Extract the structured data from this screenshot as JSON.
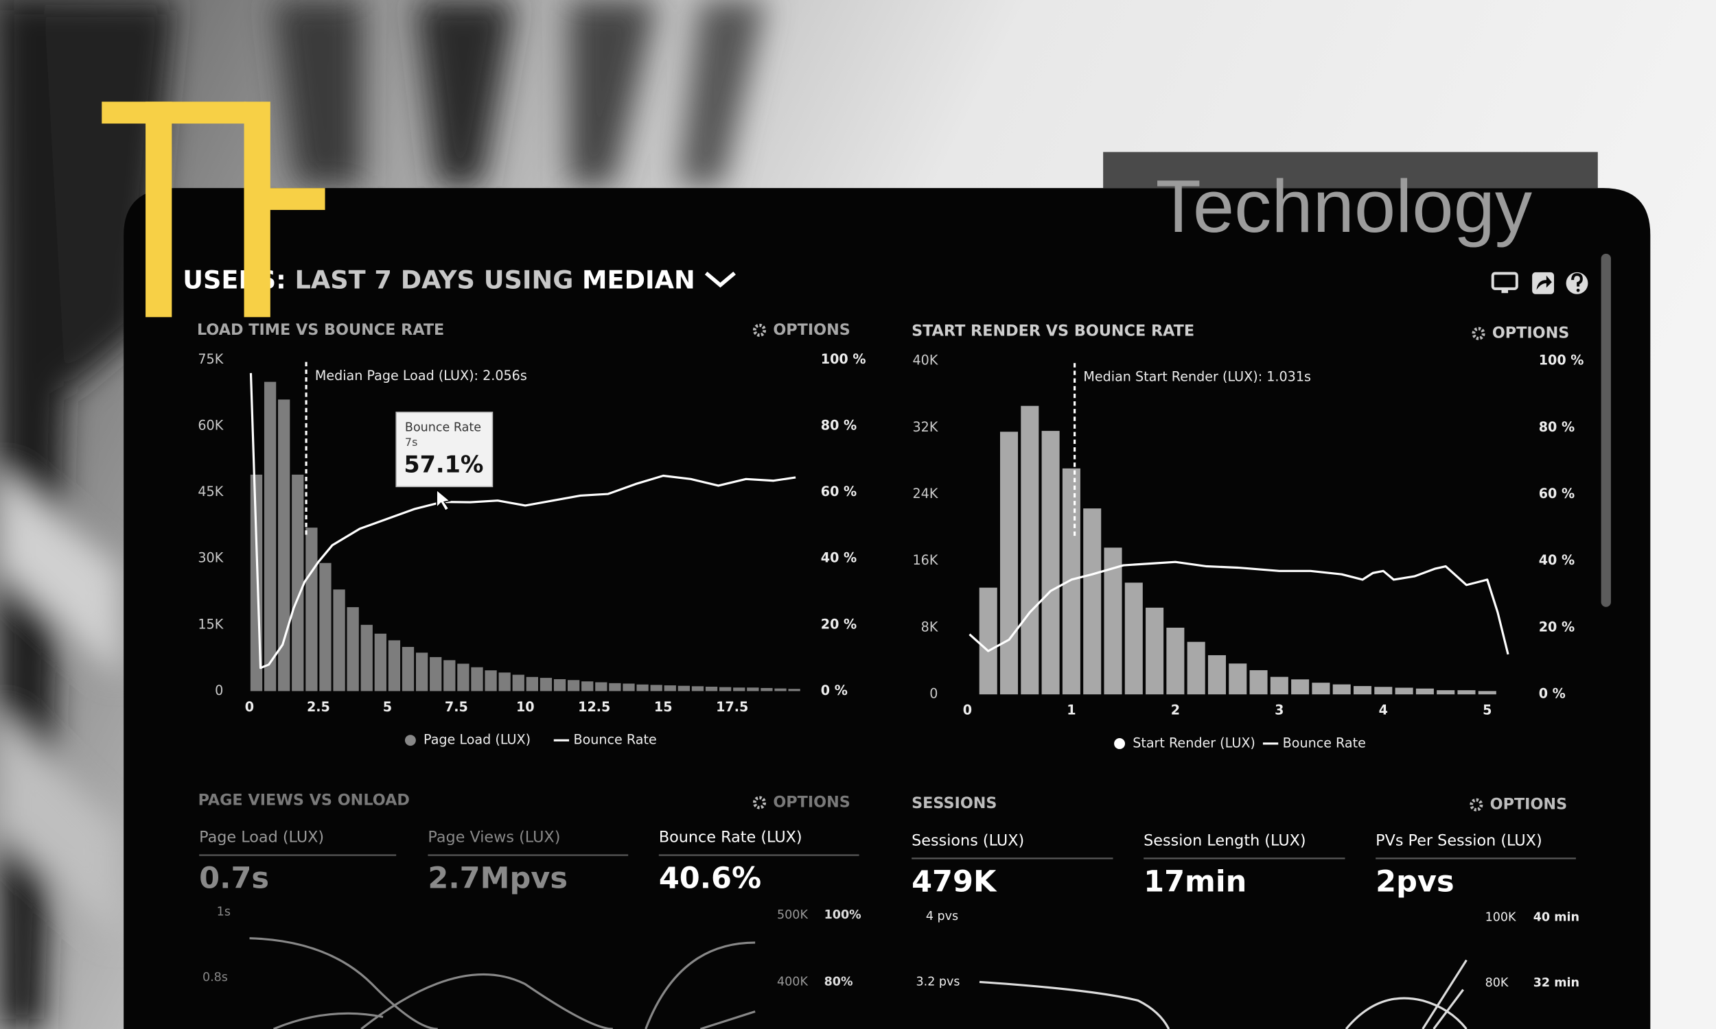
{
  "badge": "Technology",
  "header": {
    "parts": [
      "USERS:",
      "LAST 7 DAYS",
      "USING",
      "MEDIAN"
    ]
  },
  "chart_data": [
    {
      "type": "histogram",
      "title": "LOAD TIME VS BOUNCE RATE",
      "options": "OPTIONS",
      "bins": [
        0,
        0.5,
        1,
        1.5,
        2,
        2.5,
        3,
        3.5,
        4,
        4.5,
        5,
        5.5,
        6,
        6.5,
        7,
        7.5,
        8,
        8.5,
        9,
        9.5,
        10,
        10.5,
        11,
        11.5,
        12,
        12.5,
        13,
        13.5,
        14,
        14.5,
        15,
        15.5,
        16,
        16.5,
        17,
        17.5,
        18,
        18.5,
        19,
        19.5,
        20
      ],
      "xlim": [
        -0.3,
        20.3
      ],
      "xticks": [
        0,
        2.5,
        5,
        7.5,
        10,
        12.5,
        15,
        17.5
      ],
      "ylim": [
        0,
        75000
      ],
      "yticks": [
        0,
        {
          "value": 15000,
          "label": "15K"
        },
        {
          "value": 30000,
          "label": "30K"
        },
        {
          "value": 45000,
          "label": "45K"
        },
        {
          "value": 60000,
          "label": "60K"
        },
        {
          "value": 75000,
          "label": "75K"
        }
      ],
      "y2lim": [
        0,
        100
      ],
      "y2ticks": [
        {
          "value": 0,
          "label": "0 %"
        },
        {
          "value": 20,
          "label": "20 %"
        },
        {
          "value": 40,
          "label": "40 %"
        },
        {
          "value": 60,
          "label": "60 %"
        },
        {
          "value": 80,
          "label": "80 %"
        },
        {
          "value": 100,
          "label": "100 %"
        }
      ],
      "series": [
        {
          "name": "Page Load (LUX)",
          "color": "#7d7d7d",
          "values": [
            49000,
            70000,
            66000,
            49000,
            37000,
            29000,
            23000,
            19000,
            15000,
            13000,
            11500,
            10000,
            8700,
            7700,
            7000,
            6200,
            5400,
            4700,
            4200,
            3700,
            3200,
            3000,
            2700,
            2500,
            2200,
            2000,
            1800,
            1700,
            1500,
            1400,
            1300,
            1200,
            1100,
            1000,
            900,
            800,
            800,
            700,
            600,
            500
          ]
        },
        {
          "name": "Bounce Rate",
          "color": "#ffffff",
          "axis": "y2",
          "x": [
            0.05,
            0.4,
            0.7,
            1.2,
            1.6,
            2,
            2.5,
            3,
            4,
            5,
            6,
            7,
            8,
            9,
            10,
            11,
            12,
            13,
            14,
            15,
            16,
            17,
            18,
            19,
            19.8
          ],
          "values": [
            96,
            7,
            8,
            14,
            25,
            33,
            39,
            44,
            49,
            52,
            55,
            57.1,
            57,
            57.5,
            56,
            57.5,
            59,
            59.5,
            62.5,
            65,
            64,
            62,
            64,
            63.5,
            64.5
          ]
        }
      ],
      "median": {
        "value": 2.056,
        "label": "Median Page Load (LUX): 2.056s"
      },
      "tooltip": {
        "title": "Bounce Rate",
        "x_label": "7s",
        "value_label": "57.1%"
      }
    },
    {
      "type": "histogram",
      "title": "START RENDER VS BOUNCE RATE",
      "options": "OPTIONS",
      "bins": [
        0.1,
        0.3,
        0.5,
        0.7,
        0.9,
        1.1,
        1.3,
        1.5,
        1.7,
        1.9,
        2.1,
        2.3,
        2.5,
        2.7,
        2.9,
        3.1,
        3.3,
        3.5,
        3.7,
        3.9,
        4.1,
        4.3,
        4.5,
        4.7,
        4.9,
        5.1
      ],
      "xlim": [
        0,
        5.3
      ],
      "xticks": [
        0,
        1,
        2,
        3,
        4,
        5
      ],
      "ylim": [
        0,
        40000
      ],
      "yticks": [
        0,
        {
          "value": 8000,
          "label": "8K"
        },
        {
          "value": 16000,
          "label": "16K"
        },
        {
          "value": 24000,
          "label": "24K"
        },
        {
          "value": 32000,
          "label": "32K"
        },
        {
          "value": 40000,
          "label": "40K"
        }
      ],
      "y2lim": [
        0,
        100
      ],
      "y2ticks": [
        {
          "value": 0,
          "label": "0 %"
        },
        {
          "value": 20,
          "label": "20 %"
        },
        {
          "value": 40,
          "label": "40 %"
        },
        {
          "value": 60,
          "label": "60 %"
        },
        {
          "value": 80,
          "label": "80 %"
        },
        {
          "value": 100,
          "label": "100 %"
        }
      ],
      "series": [
        {
          "name": "Start Render (LUX)",
          "color": "#a8a8a8",
          "values": [
            12800,
            31500,
            34600,
            31600,
            27100,
            22300,
            17600,
            13400,
            10400,
            8000,
            6300,
            4700,
            3700,
            2900,
            2100,
            1800,
            1400,
            1200,
            1000,
            900,
            800,
            700,
            500,
            500,
            400
          ]
        },
        {
          "name": "Bounce Rate",
          "color": "#ffffff",
          "axis": "y2",
          "x": [
            0.02,
            0.2,
            0.4,
            0.6,
            0.8,
            1,
            1.2,
            1.5,
            1.8,
            2,
            2.3,
            2.6,
            3,
            3.3,
            3.6,
            3.8,
            3.9,
            4,
            4.1,
            4.3,
            4.5,
            4.6,
            4.8,
            5,
            5.1,
            5.2
          ],
          "values": [
            18,
            13,
            16.4,
            24.6,
            31,
            34.4,
            36,
            38.7,
            39.3,
            39.7,
            38.4,
            38,
            37,
            37,
            36,
            34.4,
            36.4,
            37,
            34.4,
            35.4,
            37.7,
            38.4,
            32.8,
            34.4,
            24.6,
            12
          ]
        }
      ],
      "median": {
        "value": 1.031,
        "label": "Median Start Render (LUX): 1.031s"
      }
    }
  ],
  "panels": [
    {
      "title": "PAGE VIEWS VS ONLOAD",
      "options": "OPTIONS",
      "kpis": [
        {
          "label": "Page Load (LUX)",
          "value": "0.7s"
        },
        {
          "label": "Page Views (LUX)",
          "value": "2.7Mpvs"
        },
        {
          "label": "Bounce Rate (LUX)",
          "value": "40.6%"
        }
      ],
      "axis_labels": [
        "1s",
        "0.8s",
        "500K",
        "400K",
        "100%",
        "80%"
      ]
    },
    {
      "title": "SESSIONS",
      "options": "OPTIONS",
      "kpis": [
        {
          "label": "Sessions (LUX)",
          "value": "479K"
        },
        {
          "label": "Session Length (LUX)",
          "value": "17min"
        },
        {
          "label": "PVs Per Session (LUX)",
          "value": "2pvs"
        }
      ],
      "axis_labels": [
        "4 pvs",
        "3.2 pvs",
        "100K",
        "80K",
        "40 min",
        "32 min"
      ]
    }
  ]
}
